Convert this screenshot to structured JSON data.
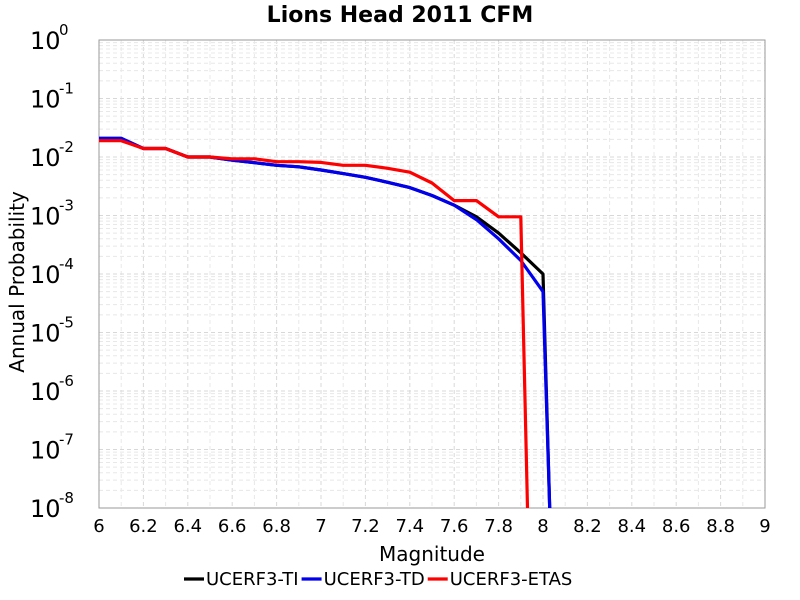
{
  "chart_data": {
    "type": "line",
    "title": "Lions Head 2011 CFM",
    "xlabel": "Magnitude",
    "ylabel": "Annual Probability",
    "xlim": [
      6,
      9
    ],
    "ylim": [
      1e-08,
      1
    ],
    "yscale": "log",
    "grid": true,
    "legend_position": "bottom",
    "x_ticks": [
      "6",
      "6.2",
      "6.4",
      "6.6",
      "6.8",
      "7",
      "7.2",
      "7.4",
      "7.6",
      "7.8",
      "8",
      "8.2",
      "8.4",
      "8.6",
      "8.8",
      "9"
    ],
    "y_ticks": [
      {
        "base": "10",
        "exp": "0"
      },
      {
        "base": "10",
        "exp": "-1"
      },
      {
        "base": "10",
        "exp": "-2"
      },
      {
        "base": "10",
        "exp": "-3"
      },
      {
        "base": "10",
        "exp": "-4"
      },
      {
        "base": "10",
        "exp": "-5"
      },
      {
        "base": "10",
        "exp": "-6"
      },
      {
        "base": "10",
        "exp": "-7"
      },
      {
        "base": "10",
        "exp": "-8"
      }
    ],
    "series": [
      {
        "name": "UCERF3-TI",
        "color": "#000000",
        "x": [
          6.0,
          6.1,
          6.2,
          6.3,
          6.4,
          6.5,
          6.6,
          6.7,
          6.8,
          6.9,
          7.0,
          7.1,
          7.2,
          7.3,
          7.4,
          7.5,
          7.6,
          7.7,
          7.8,
          7.9,
          8.0,
          8.03
        ],
        "y": [
          0.02,
          0.02,
          0.014,
          0.014,
          0.01,
          0.01,
          0.0088,
          0.008,
          0.0072,
          0.0068,
          0.006,
          0.0052,
          0.0045,
          0.0037,
          0.003,
          0.0022,
          0.0015,
          0.00095,
          0.0005,
          0.00023,
          0.0001,
          1e-08
        ]
      },
      {
        "name": "UCERF3-TD",
        "color": "#0000ee",
        "x": [
          6.0,
          6.1,
          6.2,
          6.3,
          6.4,
          6.5,
          6.6,
          6.7,
          6.8,
          6.9,
          7.0,
          7.1,
          7.2,
          7.3,
          7.4,
          7.5,
          7.6,
          7.7,
          7.8,
          7.9,
          8.0,
          8.03
        ],
        "y": [
          0.021,
          0.021,
          0.014,
          0.014,
          0.01,
          0.01,
          0.0088,
          0.008,
          0.0072,
          0.0068,
          0.006,
          0.0052,
          0.0045,
          0.0037,
          0.003,
          0.0022,
          0.0015,
          0.00085,
          0.0004,
          0.00017,
          5e-05,
          1e-08
        ]
      },
      {
        "name": "UCERF3-ETAS",
        "color": "#ff0000",
        "x": [
          6.0,
          6.1,
          6.2,
          6.3,
          6.4,
          6.5,
          6.6,
          6.7,
          6.8,
          6.9,
          7.0,
          7.1,
          7.2,
          7.3,
          7.4,
          7.5,
          7.6,
          7.7,
          7.8,
          7.9,
          7.93
        ],
        "y": [
          0.019,
          0.019,
          0.014,
          0.014,
          0.01,
          0.01,
          0.0093,
          0.0093,
          0.0083,
          0.0083,
          0.0081,
          0.0072,
          0.0072,
          0.0064,
          0.0055,
          0.0036,
          0.0018,
          0.0018,
          0.00095,
          0.00095,
          1e-08
        ]
      }
    ]
  }
}
